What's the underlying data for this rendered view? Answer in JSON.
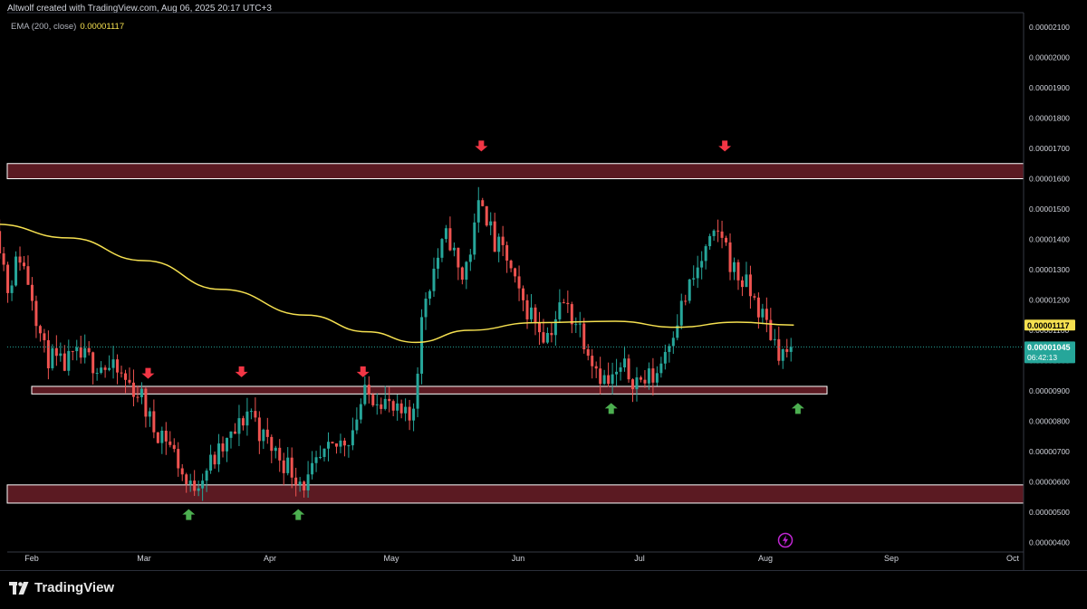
{
  "header": {
    "attribution": "Altwolf created with TradingView.com, Aug 06, 2025 20:17 UTC+3"
  },
  "legend": {
    "indicator": "EMA (200, close)",
    "value": "0.00001117"
  },
  "footer": {
    "brand": "TradingView",
    "logo_icon": "tradingview-logo-icon",
    "lightning_icon": "lightning-icon"
  },
  "chart_data": {
    "type": "candlestick",
    "x_axis": {
      "ticks": [
        "Feb",
        "Mar",
        "Apr",
        "May",
        "Jun",
        "Jul",
        "Aug",
        "Sep",
        "Oct"
      ]
    },
    "y_axis": {
      "range": [
        4e-07,
        2.1e-05
      ],
      "ticks": [
        "0.00002100",
        "0.00002000",
        "0.00001900",
        "0.00001800",
        "0.00001700",
        "0.00001600",
        "0.00001500",
        "0.00001400",
        "0.00001300",
        "0.00001200",
        "0.00001100",
        "0.00001000",
        "0.00000900",
        "0.00000800",
        "0.00000700",
        "0.00000600",
        "0.00000500",
        "0.00000400"
      ]
    },
    "price_label": {
      "value": "0.00001045",
      "countdown": "06:42:13"
    },
    "ema_label": {
      "value": "0.00001117"
    },
    "zones": [
      {
        "name": "upper-resistance-zone",
        "low": 1.6e-05,
        "high": 1.65e-05
      },
      {
        "name": "mid-support-zone",
        "low": 8.9e-06,
        "high": 9.15e-06
      },
      {
        "name": "lower-support-zone",
        "low": 5.3e-06,
        "high": 5.9e-06
      }
    ],
    "markers": [
      {
        "date": "2025-03-02",
        "dir": "down",
        "price": 9.4e-06
      },
      {
        "date": "2025-03-25",
        "dir": "down",
        "price": 9.45e-06
      },
      {
        "date": "2025-04-24",
        "dir": "down",
        "price": 9.45e-06
      },
      {
        "date": "2025-05-23",
        "dir": "down",
        "price": 1.69e-05
      },
      {
        "date": "2025-07-22",
        "dir": "down",
        "price": 1.69e-05
      },
      {
        "date": "2025-03-12",
        "dir": "up",
        "price": 5.1e-06
      },
      {
        "date": "2025-04-08",
        "dir": "up",
        "price": 5.1e-06
      },
      {
        "date": "2025-06-24",
        "dir": "up",
        "price": 8.6e-06
      },
      {
        "date": "2025-08-09",
        "dir": "up",
        "price": 8.6e-06
      }
    ],
    "colors": {
      "up": "#26a69a",
      "down": "#ef5350",
      "ema": "#f5e050",
      "zone_fill": "#5b1a22",
      "zone_border": "#ffffff",
      "marker_down": "#f23645",
      "marker_up": "#4caf50"
    },
    "ema_points": [
      [
        "2025-01-23",
        1.45e-05
      ],
      [
        "2025-02-10",
        1.405e-05
      ],
      [
        "2025-03-01",
        1.33e-05
      ],
      [
        "2025-03-20",
        1.235e-05
      ],
      [
        "2025-04-10",
        1.15e-05
      ],
      [
        "2025-04-25",
        1.095e-05
      ],
      [
        "2025-05-07",
        1.06e-05
      ],
      [
        "2025-05-20",
        1.1e-05
      ],
      [
        "2025-06-05",
        1.125e-05
      ],
      [
        "2025-06-25",
        1.13e-05
      ],
      [
        "2025-07-10",
        1.11e-05
      ],
      [
        "2025-07-25",
        1.127e-05
      ],
      [
        "2025-08-08",
        1.117e-05
      ]
    ],
    "price_path": [
      [
        "2025-01-23",
        1.47e-05
      ],
      [
        "2025-01-26",
        1.24e-05
      ],
      [
        "2025-01-29",
        1.35e-05
      ],
      [
        "2025-02-01",
        1.23e-05
      ],
      [
        "2025-02-04",
        1.03e-05
      ],
      [
        "2025-02-08",
        9.8e-06
      ],
      [
        "2025-02-13",
        1.01e-05
      ],
      [
        "2025-02-18",
        9.9e-06
      ],
      [
        "2025-02-23",
        9.5e-06
      ],
      [
        "2025-02-28",
        8.9e-06
      ],
      [
        "2025-03-03",
        7.8e-06
      ],
      [
        "2025-03-06",
        7.6e-06
      ],
      [
        "2025-03-09",
        6.8e-06
      ],
      [
        "2025-03-12",
        5.7e-06
      ],
      [
        "2025-03-16",
        6.4e-06
      ],
      [
        "2025-03-20",
        7e-06
      ],
      [
        "2025-03-24",
        7.7e-06
      ],
      [
        "2025-03-27",
        8.5e-06
      ],
      [
        "2025-03-30",
        7.5e-06
      ],
      [
        "2025-04-03",
        6.9e-06
      ],
      [
        "2025-04-07",
        6.3e-06
      ],
      [
        "2025-04-10",
        5.9e-06
      ],
      [
        "2025-04-13",
        6.6e-06
      ],
      [
        "2025-04-17",
        7.1e-06
      ],
      [
        "2025-04-21",
        7.6e-06
      ],
      [
        "2025-04-24",
        8.8e-06
      ],
      [
        "2025-04-28",
        8.9e-06
      ],
      [
        "2025-05-02",
        8.2e-06
      ],
      [
        "2025-05-06",
        8e-06
      ],
      [
        "2025-05-09",
        1.2e-05
      ],
      [
        "2025-05-12",
        1.33e-05
      ],
      [
        "2025-05-15",
        1.42e-05
      ],
      [
        "2025-05-18",
        1.26e-05
      ],
      [
        "2025-05-21",
        1.4e-05
      ],
      [
        "2025-05-23",
        1.56e-05
      ],
      [
        "2025-05-26",
        1.38e-05
      ],
      [
        "2025-05-29",
        1.35e-05
      ],
      [
        "2025-06-01",
        1.21e-05
      ],
      [
        "2025-06-04",
        1.16e-05
      ],
      [
        "2025-06-08",
        1.08e-05
      ],
      [
        "2025-06-12",
        1.19e-05
      ],
      [
        "2025-06-16",
        1.12e-05
      ],
      [
        "2025-06-20",
        9.9e-06
      ],
      [
        "2025-06-23",
        9.2e-06
      ],
      [
        "2025-06-27",
        9.7e-06
      ],
      [
        "2025-07-01",
        9.3e-06
      ],
      [
        "2025-07-05",
        9.5e-06
      ],
      [
        "2025-07-09",
        1.1e-05
      ],
      [
        "2025-07-13",
        1.23e-05
      ],
      [
        "2025-07-17",
        1.35e-05
      ],
      [
        "2025-07-21",
        1.43e-05
      ],
      [
        "2025-07-24",
        1.3e-05
      ],
      [
        "2025-07-27",
        1.25e-05
      ],
      [
        "2025-07-30",
        1.18e-05
      ],
      [
        "2025-08-02",
        1.1e-05
      ],
      [
        "2025-08-05",
        1.02e-05
      ],
      [
        "2025-08-08",
        1.045e-05
      ]
    ]
  }
}
